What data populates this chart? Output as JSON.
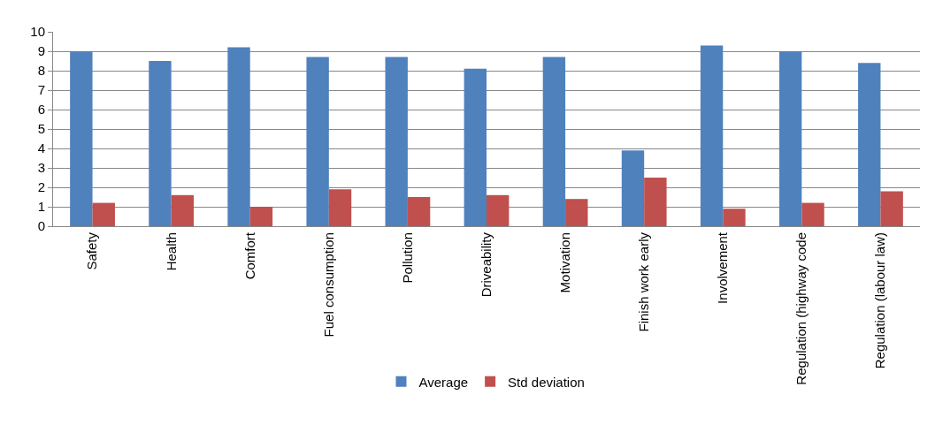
{
  "chart_data": {
    "type": "bar",
    "categories": [
      "Safety",
      "Health",
      "Comfort",
      "Fuel consumption",
      "Pollution",
      "Driveability",
      "Motivation",
      "Finish work early",
      "Involvement",
      "Regulation (highway code",
      "Regulation (labour law)"
    ],
    "series": [
      {
        "name": "Average",
        "color": "#4f81bd",
        "values": [
          9.0,
          8.5,
          9.2,
          8.7,
          8.7,
          8.1,
          8.7,
          3.9,
          9.3,
          9.0,
          8.4
        ]
      },
      {
        "name": "Std deviation",
        "color": "#c0504d",
        "values": [
          1.2,
          1.6,
          1.0,
          1.9,
          1.5,
          1.6,
          1.4,
          2.5,
          0.9,
          1.2,
          1.8
        ]
      }
    ],
    "ylim": [
      0,
      10
    ],
    "yticks": [
      0,
      1,
      2,
      3,
      4,
      5,
      6,
      7,
      8,
      9,
      10
    ],
    "grid": "y",
    "legend": "bottom"
  }
}
